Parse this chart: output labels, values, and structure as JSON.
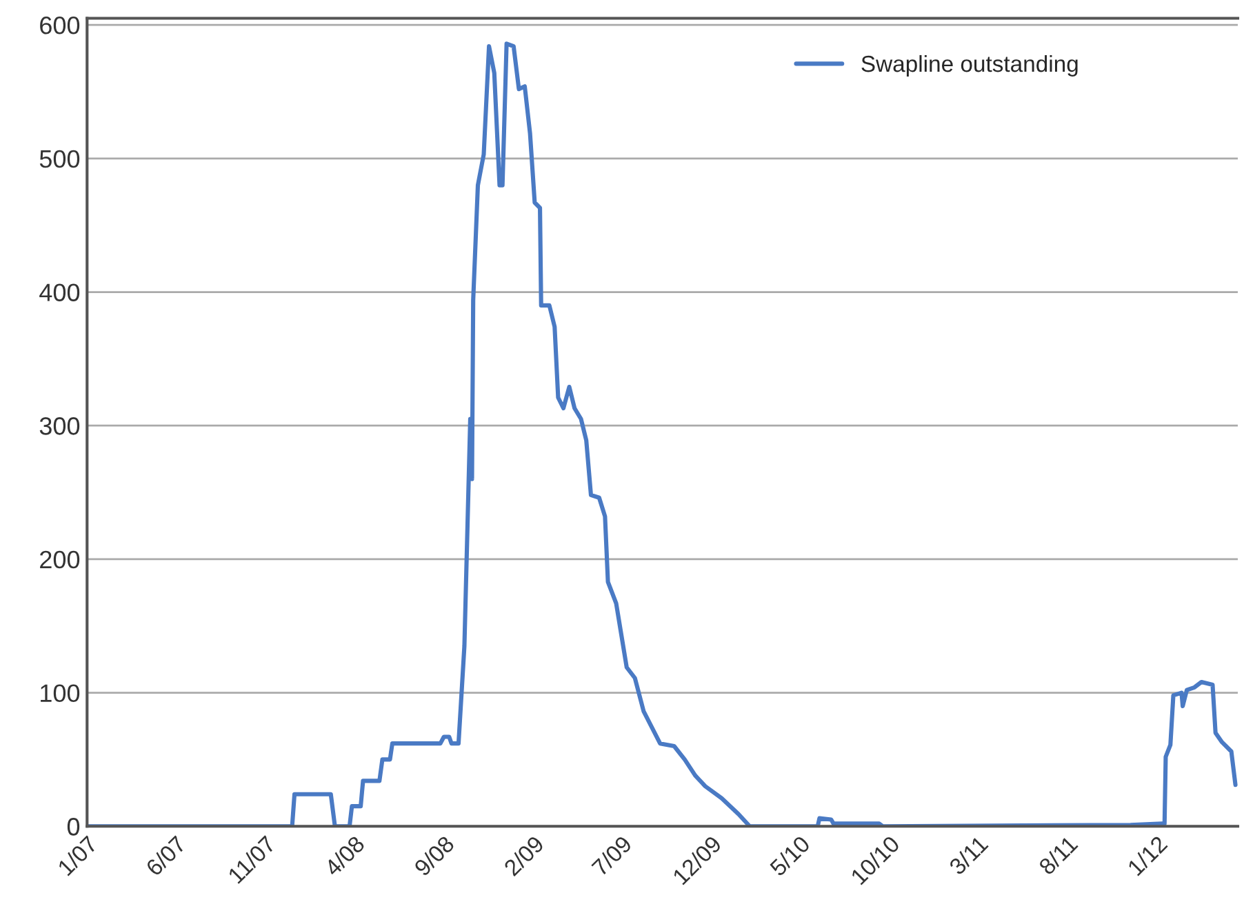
{
  "chart_data": {
    "type": "line",
    "x": [
      "2007-01-01",
      "2007-12-17",
      "2007-12-21",
      "2008-02-21",
      "2008-02-28",
      "2008-03-24",
      "2008-03-28",
      "2008-04-12",
      "2008-04-16",
      "2008-05-14",
      "2008-05-19",
      "2008-06-01",
      "2008-06-05",
      "2008-08-26",
      "2008-09-01",
      "2008-09-10",
      "2008-09-14",
      "2008-09-26",
      "2008-10-06",
      "2008-10-11",
      "2008-10-16",
      "2008-10-19",
      "2008-10-21",
      "2008-10-29",
      "2008-11-08",
      "2008-11-17",
      "2008-11-26",
      "2008-12-05",
      "2008-12-10",
      "2008-12-17",
      "2008-12-29",
      "2009-01-07",
      "2009-01-17",
      "2009-01-26",
      "2009-02-03",
      "2009-02-12",
      "2009-02-14",
      "2009-02-28",
      "2009-03-09",
      "2009-03-15",
      "2009-03-24",
      "2009-04-03",
      "2009-04-12",
      "2009-04-23",
      "2009-05-02",
      "2009-05-10",
      "2009-05-24",
      "2009-06-03",
      "2009-06-08",
      "2009-06-22",
      "2009-07-01",
      "2009-07-10",
      "2009-07-24",
      "2009-08-08",
      "2009-08-22",
      "2009-09-05",
      "2009-09-29",
      "2009-10-17",
      "2009-11-04",
      "2009-11-21",
      "2009-12-19",
      "2010-01-17",
      "2010-02-05",
      "2010-06-01",
      "2010-06-04",
      "2010-06-24",
      "2010-06-28",
      "2010-09-14",
      "2010-09-20",
      "2011-11-17",
      "2012-01-10",
      "2012-01-14",
      "2012-01-16",
      "2012-01-24",
      "2012-01-29",
      "2012-02-12",
      "2012-02-14",
      "2012-02-21",
      "2012-03-05",
      "2012-03-17",
      "2012-04-05",
      "2012-04-10",
      "2012-04-21",
      "2012-05-07",
      "2012-05-14"
    ],
    "series": [
      {
        "name": "Swapline outstanding",
        "color": "#4a7ac4",
        "values": [
          0,
          0,
          24,
          24,
          0,
          0,
          15,
          15,
          34,
          34,
          50,
          50,
          62,
          62,
          67,
          67,
          62,
          62,
          135,
          220,
          305,
          260,
          394,
          480,
          503,
          584,
          564,
          480,
          480,
          586,
          584,
          552,
          554,
          519,
          467,
          463,
          390,
          390,
          374,
          321,
          313,
          329,
          313,
          305,
          289,
          248,
          246,
          232,
          183,
          167,
          143,
          119,
          111,
          86,
          74,
          62,
          60,
          50,
          38,
          30,
          21,
          9,
          0,
          0,
          6,
          5,
          2,
          2,
          0,
          1,
          2,
          2,
          52,
          61,
          98,
          100,
          90,
          102,
          104,
          108,
          106,
          70,
          63,
          56,
          31
        ]
      }
    ],
    "xlim": [
      "2007-01-01",
      "2012-05-18"
    ],
    "xticks": [
      {
        "value": "2007-01-01",
        "label": "1/07"
      },
      {
        "value": "2007-06-01",
        "label": "6/07"
      },
      {
        "value": "2007-11-01",
        "label": "11/07"
      },
      {
        "value": "2008-04-01",
        "label": "4/08"
      },
      {
        "value": "2008-09-01",
        "label": "9/08"
      },
      {
        "value": "2009-02-01",
        "label": "2/09"
      },
      {
        "value": "2009-07-01",
        "label": "7/09"
      },
      {
        "value": "2009-12-01",
        "label": "12/09"
      },
      {
        "value": "2010-05-01",
        "label": "5/10"
      },
      {
        "value": "2010-10-01",
        "label": "10/10"
      },
      {
        "value": "2011-03-01",
        "label": "3/11"
      },
      {
        "value": "2011-08-01",
        "label": "8/11"
      },
      {
        "value": "2012-01-01",
        "label": "1/12"
      }
    ],
    "ylim": [
      0,
      605
    ],
    "yticks": [
      0,
      100,
      200,
      300,
      400,
      500,
      600
    ],
    "grid": "y",
    "legend": "top right",
    "line_style": "solid",
    "marker": "none"
  }
}
